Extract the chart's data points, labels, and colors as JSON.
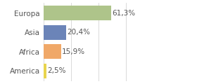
{
  "categories": [
    "America",
    "Africa",
    "Asia",
    "Europa"
  ],
  "values": [
    2.5,
    15.9,
    20.4,
    61.3
  ],
  "labels": [
    "2,5%",
    "15,9%",
    "20,4%",
    "61,3%"
  ],
  "bar_colors": [
    "#e8d44d",
    "#f0a868",
    "#6b84b8",
    "#aec48a"
  ],
  "background_color": "#ffffff",
  "xlim": [
    0,
    100
  ],
  "bar_height": 0.75,
  "label_fontsize": 7.5,
  "tick_fontsize": 7.5,
  "label_color": "#555555",
  "grid_color": "#cccccc",
  "grid_xticks": [
    0,
    25,
    50,
    75,
    100
  ]
}
